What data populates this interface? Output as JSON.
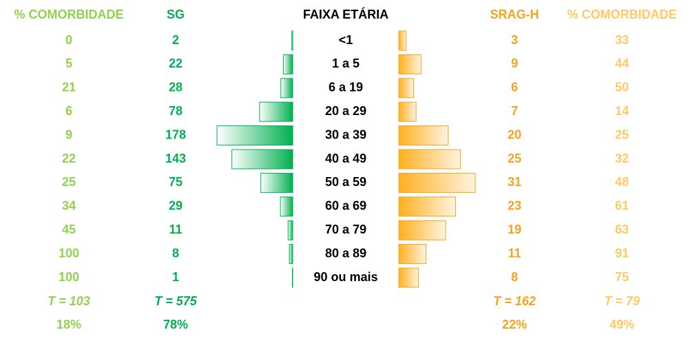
{
  "headers": [
    "% COMORBIDADE",
    "SG",
    "FAIXA ETÁRIA",
    "SRAG-H",
    "% COMORBIDADE"
  ],
  "rows": [
    {
      "sg_comorb": 0,
      "sg": 2,
      "age": "<1",
      "srag": 3,
      "srag_comorb": 33
    },
    {
      "sg_comorb": 5,
      "sg": 22,
      "age": "1 a 5",
      "srag": 9,
      "srag_comorb": 44
    },
    {
      "sg_comorb": 21,
      "sg": 28,
      "age": "6 a 19",
      "srag": 6,
      "srag_comorb": 50
    },
    {
      "sg_comorb": 6,
      "sg": 78,
      "age": "20 a 29",
      "srag": 7,
      "srag_comorb": 14
    },
    {
      "sg_comorb": 9,
      "sg": 178,
      "age": "30 a 39",
      "srag": 20,
      "srag_comorb": 25
    },
    {
      "sg_comorb": 22,
      "sg": 143,
      "age": "40 a 49",
      "srag": 25,
      "srag_comorb": 32
    },
    {
      "sg_comorb": 25,
      "sg": 75,
      "age": "50 a 59",
      "srag": 31,
      "srag_comorb": 48
    },
    {
      "sg_comorb": 34,
      "sg": 29,
      "age": "60 a 69",
      "srag": 23,
      "srag_comorb": 61
    },
    {
      "sg_comorb": 45,
      "sg": 11,
      "age": "70 a 79",
      "srag": 19,
      "srag_comorb": 63
    },
    {
      "sg_comorb": 100,
      "sg": 8,
      "age": "80 a 89",
      "srag": 11,
      "srag_comorb": 91
    },
    {
      "sg_comorb": 100,
      "sg": 1,
      "age": "90 ou mais",
      "srag": 8,
      "srag_comorb": 75
    }
  ],
  "totals": {
    "sg_comorb": "T = 103",
    "sg": "T = 575",
    "srag": "T = 162",
    "srag_comorb": "T = 79"
  },
  "percents": {
    "sg_comorb": "18%",
    "sg": "78%",
    "srag": "22%",
    "srag_comorb": "49%"
  }
}
